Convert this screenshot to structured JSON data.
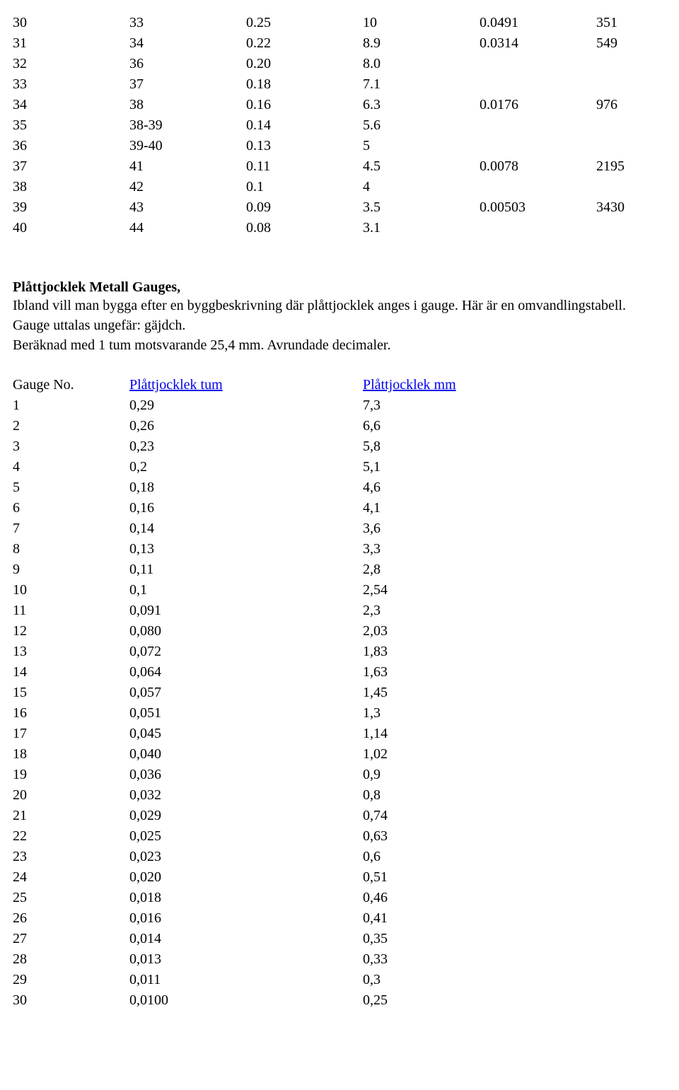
{
  "topTable": {
    "rows": [
      [
        "30",
        "33",
        "0.25",
        "10",
        "0.0491",
        "351"
      ],
      [
        "31",
        "34",
        "0.22",
        "8.9",
        "0.0314",
        "549"
      ],
      [
        "32",
        "36",
        "0.20",
        "8.0",
        "",
        ""
      ],
      [
        "33",
        "37",
        "0.18",
        "7.1",
        "",
        ""
      ],
      [
        "34",
        "38",
        "0.16",
        "6.3",
        "0.0176",
        "976"
      ],
      [
        "35",
        "38-39",
        "0.14",
        "5.6",
        "",
        ""
      ],
      [
        "36",
        "39-40",
        "0.13",
        "5",
        "",
        ""
      ],
      [
        "37",
        "41",
        "0.11",
        "4.5",
        "0.0078",
        "2195"
      ],
      [
        "38",
        "42",
        "0.1",
        "4",
        "",
        ""
      ],
      [
        "39",
        "43",
        "0.09",
        "3.5",
        "0.00503",
        "3430"
      ],
      [
        "40",
        "44",
        "0.08",
        "3.1",
        "",
        ""
      ]
    ]
  },
  "heading": "Plåttjocklek Metall Gauges,",
  "para1": "Ibland vill man bygga efter en byggbeskrivning där plåttjocklek anges i gauge. Här är en omvandlingstabell. Gauge uttalas ungefär: gäjdch.",
  "para2": "Beräknad med 1 tum motsvarande 25,4 mm. Avrundade decimaler.",
  "gaugeHeader": [
    "Gauge No.",
    "Plåttjocklek tum",
    "Plåttjocklek mm"
  ],
  "gaugeRows": [
    [
      "1",
      "0,29",
      "7,3"
    ],
    [
      "2",
      "0,26",
      "6,6"
    ],
    [
      "3",
      "0,23",
      "5,8"
    ],
    [
      "4",
      "0,2",
      "5,1"
    ],
    [
      "5",
      "0,18",
      "4,6"
    ],
    [
      "6",
      "0,16",
      "4,1"
    ],
    [
      "7",
      "0,14",
      "3,6"
    ],
    [
      "8",
      "0,13",
      "3,3"
    ],
    [
      "9",
      "0,11",
      "2,8"
    ],
    [
      "10",
      "0,1",
      "2,54"
    ],
    [
      "11",
      "0,091",
      "2,3"
    ],
    [
      "12",
      "0,080",
      "2,03"
    ],
    [
      "13",
      "0,072",
      "1,83"
    ],
    [
      "14",
      "0,064",
      "1,63"
    ],
    [
      "15",
      "0,057",
      "1,45"
    ],
    [
      "16",
      "0,051",
      "1,3"
    ],
    [
      "17",
      "0,045",
      "1,14"
    ],
    [
      "18",
      "0,040",
      "1,02"
    ],
    [
      "19",
      "0,036",
      "0,9"
    ],
    [
      "20",
      "0,032",
      "0,8"
    ],
    [
      "21",
      "0,029",
      "0,74"
    ],
    [
      "22",
      "0,025",
      "0,63"
    ],
    [
      "23",
      "0,023",
      "0,6"
    ],
    [
      "24",
      "0,020",
      "0,51"
    ],
    [
      "25",
      "0,018",
      "0,46"
    ],
    [
      "26",
      "0,016",
      "0,41"
    ],
    [
      "27",
      "0,014",
      "0,35"
    ],
    [
      "28",
      "0,013",
      "0,33"
    ],
    [
      "29",
      "0,011",
      "0,3"
    ],
    [
      "30",
      "0,0100",
      "0,25"
    ]
  ]
}
